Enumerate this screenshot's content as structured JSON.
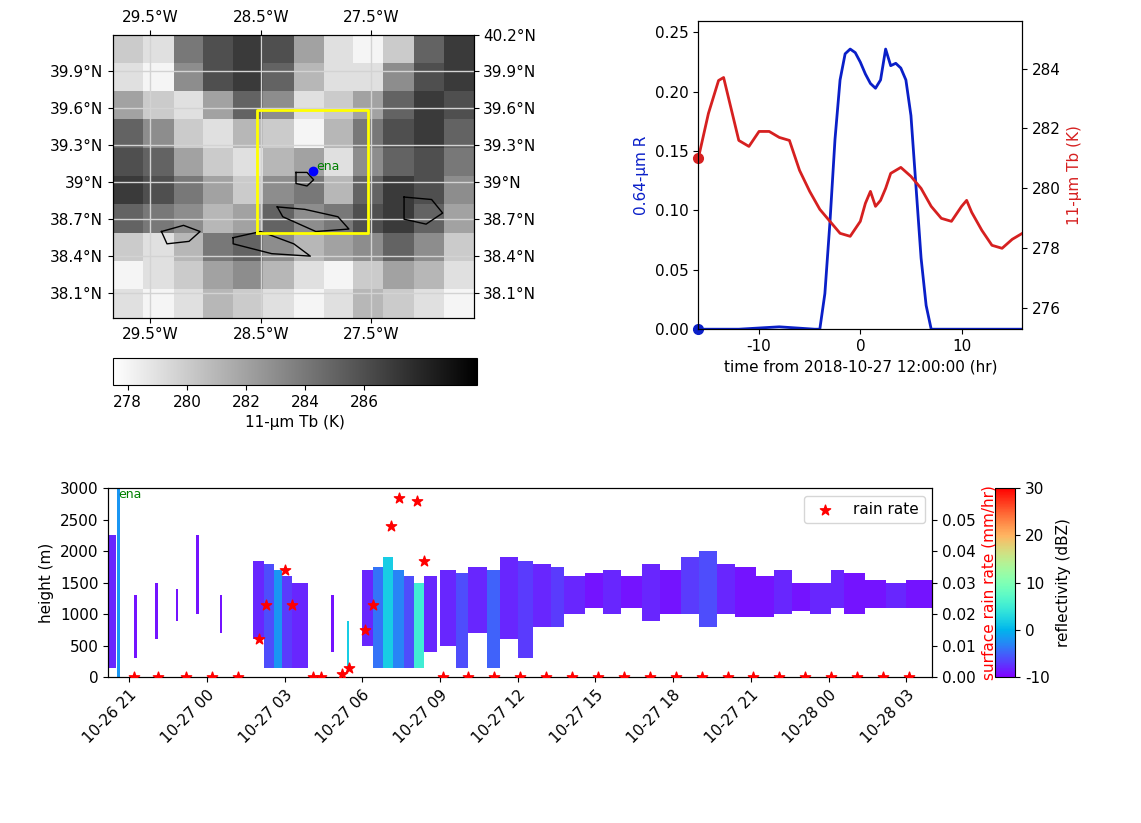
{
  "chart_data": [
    {
      "type": "map",
      "xlim": [
        -29.84,
        -26.57
      ],
      "ylim": [
        37.9,
        40.2
      ],
      "y2lim": [
        37.9,
        40.2
      ],
      "xticks": [
        {
          "value": -29.5,
          "label": "29.5°W"
        },
        {
          "value": -28.5,
          "label": "28.5°W"
        },
        {
          "value": -27.5,
          "label": "27.5°W"
        }
      ],
      "yticks": [
        {
          "value": 38.1,
          "label": "38.1°N"
        },
        {
          "value": 38.4,
          "label": "38.4°N"
        },
        {
          "value": 38.7,
          "label": "38.7°N"
        },
        {
          "value": 39.0,
          "label": "39°N"
        },
        {
          "value": 39.3,
          "label": "39.3°N"
        },
        {
          "value": 39.6,
          "label": "39.6°N"
        },
        {
          "value": 39.9,
          "label": "39.9°N"
        }
      ],
      "y2ticks": [
        {
          "value": 38.1,
          "label": "38.1°N"
        },
        {
          "value": 38.4,
          "label": "38.4°N"
        },
        {
          "value": 38.7,
          "label": "38.7°N"
        },
        {
          "value": 39.0,
          "label": "39°N"
        },
        {
          "value": 39.3,
          "label": "39.3°N"
        },
        {
          "value": 39.6,
          "label": "39.6°N"
        },
        {
          "value": 39.9,
          "label": "39.9°N"
        },
        {
          "value": 40.2,
          "label": "40.2°N"
        }
      ],
      "grid": true,
      "tb_field": {
        "lon_edges": [
          -29.84,
          -29.57,
          -29.29,
          -29.02,
          -28.75,
          -28.48,
          -28.2,
          -27.93,
          -27.66,
          -27.39,
          -27.11,
          -26.84,
          -26.57
        ],
        "lat_edges": [
          40.2,
          39.97,
          39.74,
          39.51,
          39.28,
          39.05,
          38.82,
          38.59,
          38.36,
          38.13,
          37.9
        ],
        "values": [
          [
            280,
            279,
            284,
            286,
            287,
            286,
            282,
            279,
            278,
            280,
            285,
            287
          ],
          [
            279,
            278,
            283,
            286,
            287,
            285,
            281,
            279,
            279,
            283,
            286,
            287
          ],
          [
            282,
            280,
            279,
            282,
            285,
            283,
            279,
            280,
            282,
            285,
            287,
            286
          ],
          [
            285,
            283,
            280,
            279,
            281,
            280,
            278,
            281,
            284,
            286,
            287,
            285
          ],
          [
            286,
            285,
            282,
            280,
            279,
            281,
            282,
            279,
            283,
            285,
            286,
            284
          ],
          [
            287,
            286,
            284,
            282,
            280,
            283,
            284,
            281,
            285,
            287,
            286,
            283
          ],
          [
            285,
            284,
            283,
            281,
            282,
            285,
            283,
            284,
            286,
            287,
            285,
            282
          ],
          [
            280,
            279,
            281,
            284,
            285,
            283,
            281,
            282,
            283,
            285,
            283,
            280
          ],
          [
            278,
            279,
            280,
            282,
            283,
            281,
            279,
            278,
            280,
            282,
            281,
            279
          ],
          [
            279,
            278,
            279,
            281,
            280,
            279,
            278,
            279,
            281,
            280,
            279,
            278
          ]
        ]
      },
      "colorbar": {
        "label": "11-μm Tb (K)",
        "range": [
          277.5,
          289.8
        ],
        "ticks": [
          278,
          280,
          282,
          284,
          286
        ],
        "color": "gray"
      },
      "box": {
        "lon": [
          -28.53,
          -27.53
        ],
        "lat": [
          38.59,
          39.59
        ],
        "color": "yellow"
      },
      "site": {
        "label": "ena",
        "lon": -28.03,
        "lat": 39.09,
        "color": "blue",
        "text_color": "green"
      },
      "contours": [
        [
          [
            -28.18,
            39.08
          ],
          [
            -28.08,
            39.08
          ],
          [
            -28.02,
            39.02
          ],
          [
            -28.08,
            38.97
          ],
          [
            -28.18,
            38.99
          ],
          [
            -28.18,
            39.08
          ]
        ],
        [
          [
            -29.4,
            38.6
          ],
          [
            -29.2,
            38.65
          ],
          [
            -29.05,
            38.6
          ],
          [
            -29.15,
            38.52
          ],
          [
            -29.35,
            38.5
          ],
          [
            -29.4,
            38.6
          ]
        ],
        [
          [
            -28.75,
            38.55
          ],
          [
            -28.5,
            38.6
          ],
          [
            -28.2,
            38.5
          ],
          [
            -28.05,
            38.4
          ],
          [
            -28.4,
            38.42
          ],
          [
            -28.75,
            38.5
          ],
          [
            -28.75,
            38.55
          ]
        ],
        [
          [
            -28.35,
            38.8
          ],
          [
            -28.1,
            38.78
          ],
          [
            -27.8,
            38.72
          ],
          [
            -27.7,
            38.62
          ],
          [
            -28.0,
            38.6
          ],
          [
            -28.3,
            38.72
          ],
          [
            -28.35,
            38.8
          ]
        ],
        [
          [
            -27.2,
            38.88
          ],
          [
            -26.95,
            38.86
          ],
          [
            -26.85,
            38.75
          ],
          [
            -27.0,
            38.66
          ],
          [
            -27.2,
            38.7
          ],
          [
            -27.2,
            38.88
          ]
        ]
      ]
    },
    {
      "type": "line",
      "xlabel": "time from 2018-10-27 12:00:00 (hr)",
      "ylabel": "0.64-μm R",
      "y2label": "11-μm Tb (K)",
      "xlim": [
        -16,
        16
      ],
      "xticks": [
        -10,
        0,
        10
      ],
      "ylim": [
        0,
        0.26
      ],
      "yticks": [
        {
          "value": 0,
          "label": "0.00"
        },
        {
          "value": 0.05,
          "label": "0.05"
        },
        {
          "value": 0.1,
          "label": "0.10"
        },
        {
          "value": 0.15,
          "label": "0.15"
        },
        {
          "value": 0.2,
          "label": "0.20"
        },
        {
          "value": 0.25,
          "label": "0.25"
        }
      ],
      "y2lim": [
        275.3,
        285.6
      ],
      "y2ticks": [
        276,
        278,
        280,
        282,
        284
      ],
      "series": [
        {
          "color": "#0a1fc8",
          "x": [
            -16,
            -12,
            -8,
            -4.5,
            -4,
            -3.5,
            -3,
            -2.5,
            -2,
            -1.5,
            -1,
            -0.5,
            0,
            0.5,
            1,
            1.5,
            2,
            2.5,
            3,
            3.5,
            4,
            4.5,
            5,
            5.5,
            6,
            6.5,
            7,
            10,
            16
          ],
          "values": [
            0,
            0,
            0.002,
            0,
            0,
            0.03,
            0.09,
            0.16,
            0.21,
            0.232,
            0.236,
            0.233,
            0.225,
            0.215,
            0.207,
            0.203,
            0.21,
            0.236,
            0.222,
            0.224,
            0.22,
            0.21,
            0.18,
            0.12,
            0.06,
            0.02,
            0,
            0,
            0
          ]
        },
        {
          "color": "#d62020",
          "axis": "y2",
          "x": [
            -16,
            -15,
            -14,
            -13.5,
            -13,
            -12,
            -11,
            -10,
            -9,
            -8,
            -7,
            -6,
            -5,
            -4,
            -3,
            -2,
            -1,
            0,
            0.5,
            1,
            1.5,
            2,
            2.5,
            3,
            4,
            5,
            6,
            7,
            8,
            9,
            10,
            10.5,
            11,
            12,
            13,
            14,
            15,
            16
          ],
          "values": [
            281.0,
            282.5,
            283.6,
            283.7,
            283.0,
            281.6,
            281.4,
            281.9,
            281.9,
            281.7,
            281.6,
            280.6,
            279.9,
            279.3,
            278.9,
            278.5,
            278.4,
            278.9,
            279.5,
            279.9,
            279.4,
            279.6,
            280.0,
            280.5,
            280.7,
            280.4,
            280.0,
            279.4,
            279.0,
            278.9,
            279.4,
            279.6,
            279.2,
            278.6,
            278.1,
            278.0,
            278.3,
            278.5
          ]
        }
      ]
    },
    {
      "type": "time_height",
      "xlim": [
        -0.8,
        31.0
      ],
      "xticks": [
        {
          "value": 0,
          "label": "10-26 21"
        },
        {
          "value": 3,
          "label": "10-27 00"
        },
        {
          "value": 6,
          "label": "10-27 03"
        },
        {
          "value": 9,
          "label": "10-27 06"
        },
        {
          "value": 12,
          "label": "10-27 09"
        },
        {
          "value": 15,
          "label": "10-27 12"
        },
        {
          "value": 18,
          "label": "10-27 15"
        },
        {
          "value": 21,
          "label": "10-27 18"
        },
        {
          "value": 24,
          "label": "10-27 21"
        },
        {
          "value": 27,
          "label": "10-28 00"
        },
        {
          "value": 30,
          "label": "10-28 03"
        }
      ],
      "ylabel": "height (m)",
      "ylim": [
        0,
        3000
      ],
      "yticks": [
        0,
        500,
        1000,
        1500,
        2000,
        2500,
        3000
      ],
      "y2label": "surface rain rate (mm/hr)",
      "y2lim": [
        0,
        0.06
      ],
      "y2ticks": [
        {
          "value": 0,
          "label": "0.00"
        },
        {
          "value": 0.01,
          "label": "0.01"
        },
        {
          "value": 0.02,
          "label": "0.02"
        },
        {
          "value": 0.03,
          "label": "0.03"
        },
        {
          "value": 0.04,
          "label": "0.04"
        },
        {
          "value": 0.05,
          "label": "0.05"
        }
      ],
      "site_label": "ena",
      "reflectivity": {
        "label": "reflectivity (dBZ)",
        "range": [
          -10,
          30
        ],
        "ticks": [
          -10,
          0,
          10,
          20,
          30
        ],
        "color": "rainbow",
        "columns": [
          [
            -0.8,
            -0.5,
            150,
            2250,
            -8
          ],
          [
            -0.45,
            -0.35,
            0,
            3000,
            -2
          ],
          [
            0.2,
            0.3,
            300,
            1300,
            -9
          ],
          [
            1.0,
            1.1,
            600,
            1500,
            -9
          ],
          [
            1.8,
            1.9,
            900,
            1400,
            -9
          ],
          [
            2.6,
            2.7,
            1000,
            2250,
            -9
          ],
          [
            3.5,
            3.6,
            700,
            1300,
            -9
          ],
          [
            4.8,
            5.2,
            600,
            1850,
            -8
          ],
          [
            5.2,
            5.6,
            150,
            1800,
            -6
          ],
          [
            5.6,
            5.9,
            150,
            1700,
            -2
          ],
          [
            5.9,
            6.3,
            150,
            1600,
            -7
          ],
          [
            6.3,
            6.9,
            150,
            1500,
            -8
          ],
          [
            7.8,
            7.9,
            400,
            1300,
            -9
          ],
          [
            8.4,
            8.5,
            150,
            900,
            2
          ],
          [
            9.0,
            9.4,
            500,
            1700,
            -8
          ],
          [
            9.4,
            9.8,
            150,
            1750,
            -4
          ],
          [
            9.8,
            10.2,
            150,
            1900,
            2
          ],
          [
            10.2,
            10.6,
            150,
            1700,
            -3
          ],
          [
            10.6,
            11.0,
            150,
            1600,
            -6
          ],
          [
            11.0,
            11.4,
            150,
            1500,
            5
          ],
          [
            11.4,
            11.9,
            400,
            1600,
            -8
          ],
          [
            12.0,
            12.6,
            500,
            1700,
            -8
          ],
          [
            12.6,
            13.1,
            150,
            1650,
            -6
          ],
          [
            13.1,
            13.8,
            700,
            1750,
            -8
          ],
          [
            13.8,
            14.3,
            150,
            1700,
            -5
          ],
          [
            14.3,
            15.0,
            600,
            1900,
            -8
          ],
          [
            15.0,
            15.6,
            300,
            1850,
            -7
          ],
          [
            15.6,
            16.3,
            800,
            1800,
            -8
          ],
          [
            16.3,
            16.8,
            800,
            1750,
            -7
          ],
          [
            16.8,
            17.6,
            1000,
            1600,
            -8
          ],
          [
            17.6,
            18.3,
            1100,
            1650,
            -9
          ],
          [
            18.3,
            19.0,
            1000,
            1700,
            -8
          ],
          [
            19.0,
            19.8,
            1100,
            1600,
            -9
          ],
          [
            19.8,
            20.5,
            900,
            1800,
            -8
          ],
          [
            20.5,
            21.3,
            1000,
            1700,
            -9
          ],
          [
            21.3,
            22.0,
            1000,
            1900,
            -7
          ],
          [
            22.0,
            22.7,
            800,
            2000,
            -6
          ],
          [
            22.7,
            23.4,
            1000,
            1800,
            -8
          ],
          [
            23.4,
            24.2,
            950,
            1750,
            -9
          ],
          [
            24.2,
            24.9,
            950,
            1600,
            -9
          ],
          [
            24.9,
            25.6,
            1000,
            1700,
            -8
          ],
          [
            25.6,
            26.3,
            1050,
            1500,
            -9
          ],
          [
            26.3,
            27.1,
            1000,
            1500,
            -8
          ],
          [
            27.1,
            27.6,
            1100,
            1700,
            -8
          ],
          [
            27.6,
            28.4,
            1000,
            1650,
            -9
          ],
          [
            28.4,
            29.2,
            1100,
            1550,
            -9
          ],
          [
            29.2,
            30.0,
            1100,
            1500,
            -8
          ],
          [
            30.0,
            31.0,
            1100,
            1550,
            -9
          ]
        ]
      },
      "series": [
        {
          "name": "rain rate",
          "type": "scatter",
          "marker": "*",
          "color": "red",
          "axis": "y2",
          "x": [
            0.2,
            1.1,
            2.2,
            3.2,
            4.2,
            5.0,
            5.3,
            6.0,
            6.3,
            7.1,
            7.4,
            8.2,
            8.5,
            9.1,
            9.4,
            10.1,
            10.4,
            11.1,
            11.4,
            12.1,
            13.1,
            14.1,
            15.1,
            16.1,
            17.1,
            18.1,
            19.1,
            20.1,
            21.1,
            22.1,
            23.1,
            24.1,
            25.1,
            26.1,
            27.1,
            28.1,
            29.1,
            30.1
          ],
          "values": [
            0,
            0,
            0,
            0,
            0,
            0.012,
            0.023,
            0.034,
            0.023,
            0,
            0,
            0.001,
            0.003,
            0.015,
            0.023,
            0.048,
            0.057,
            0.056,
            0.037,
            0,
            0,
            0,
            0,
            0,
            0,
            0,
            0,
            0,
            0,
            0,
            0,
            0,
            0,
            0,
            0,
            0,
            0,
            0
          ]
        }
      ],
      "legend": "upper right"
    }
  ]
}
